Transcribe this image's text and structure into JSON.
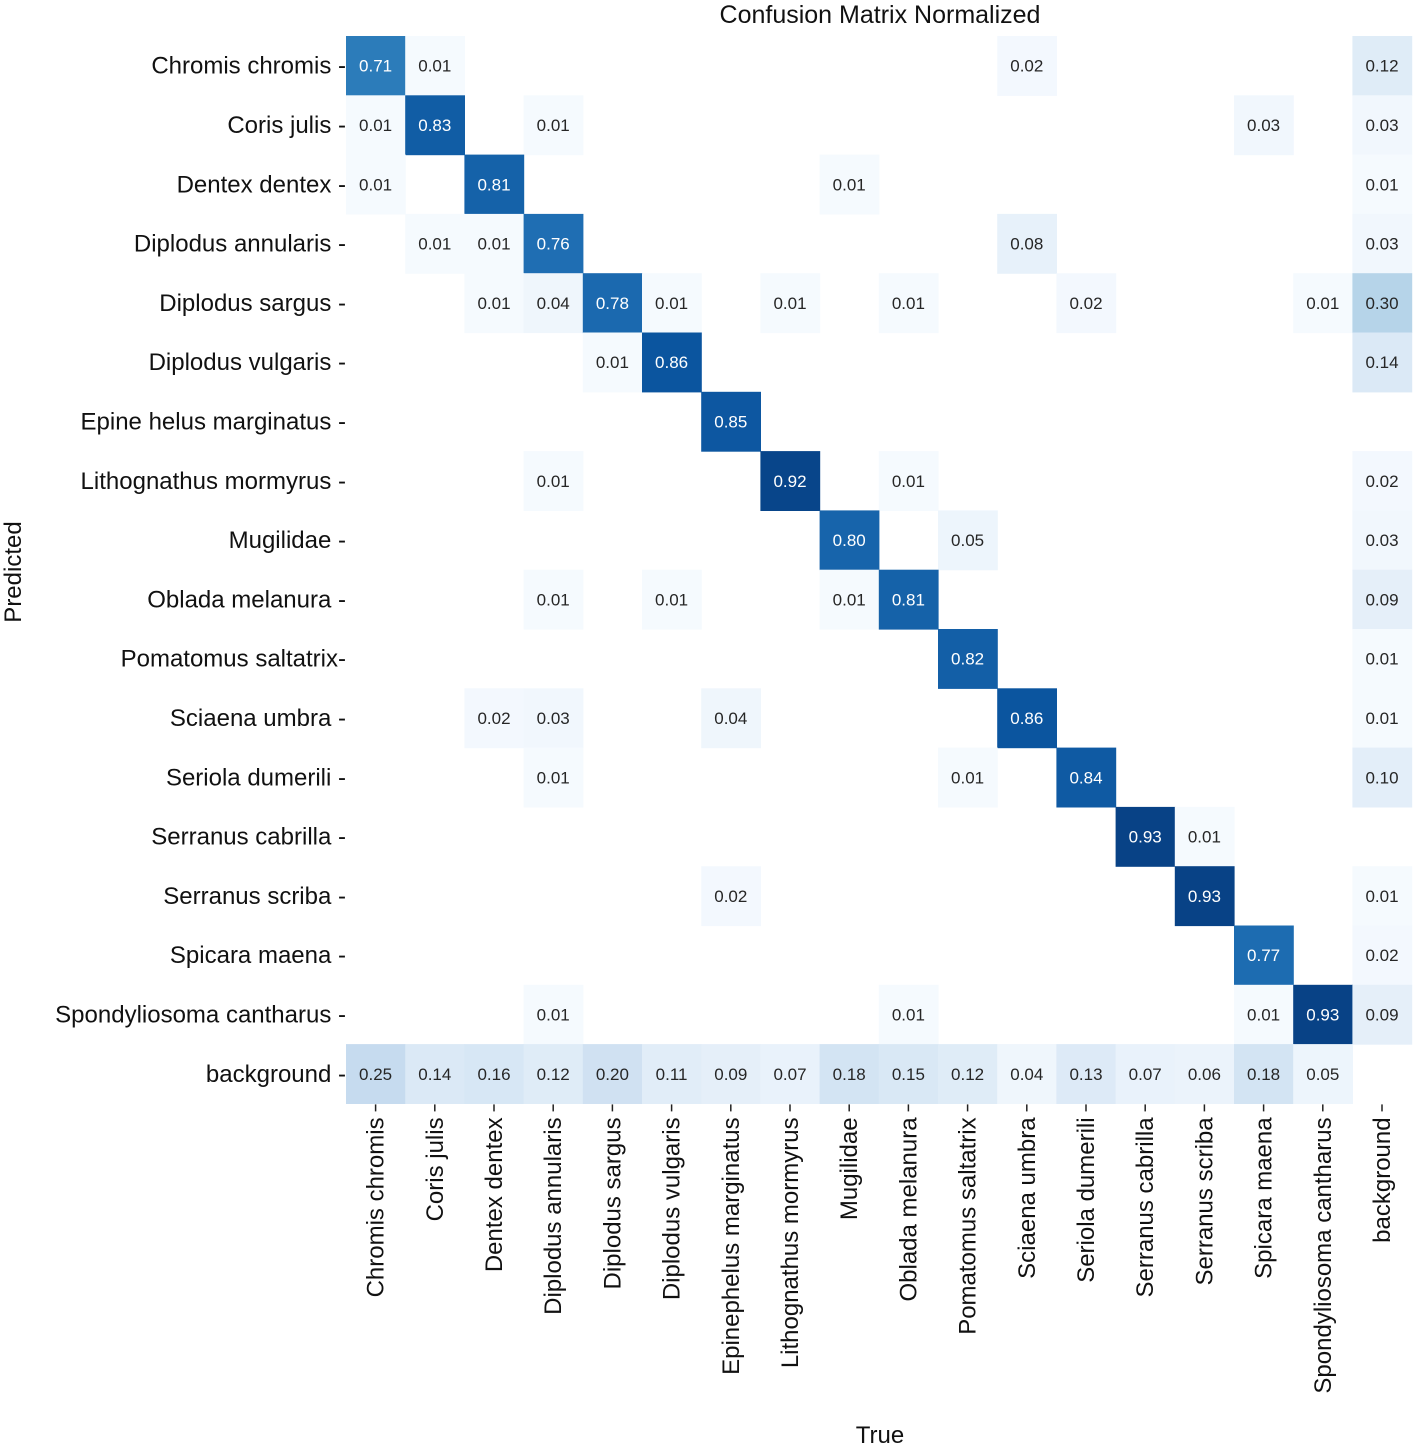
{
  "chart_data": {
    "type": "heatmap",
    "title": "Confusion Matrix Normalized",
    "xlabel": "True",
    "ylabel": "Predicted",
    "colormap": "Blues",
    "value_range": [
      0,
      1
    ],
    "low_color": "#f7fbff",
    "high_color": "#08306b",
    "x_categories": [
      "Chromis chromis",
      "Coris julis",
      "Dentex dentex",
      "Diplodus annularis",
      "Diplodus sargus",
      "Diplodus vulgaris",
      "Epinephelus marginatus",
      "Lithognathus mormyrus",
      "Mugilidae",
      "Oblada melanura",
      "Pomatomus saltatrix",
      "Sciaena umbra",
      "Seriola dumerili",
      "Serranus cabrilla",
      "Serranus scriba",
      "Spicara maena",
      "Spondyliosoma cantharus",
      "background"
    ],
    "y_categories": [
      "Chromis chromis -",
      "Coris julis -",
      "Dentex dentex -",
      "Diplodus annularis -",
      "Diplodus sargus -",
      "Diplodus vulgaris -",
      "Epine  helus marginatus -",
      "Lithognathus mormyrus -",
      "Mugilidae -",
      "Oblada melanura -",
      "Pomatomus saltatrix-",
      "Sciaena umbra -",
      "Seriola dumerili -",
      "Serranus cabrilla -",
      "Serranus scriba -",
      "Spicara maena -",
      "Spondyliosoma cantharus -",
      "background -"
    ],
    "matrix": [
      [
        0.71,
        0.01,
        null,
        null,
        null,
        null,
        null,
        null,
        null,
        null,
        null,
        0.02,
        null,
        null,
        null,
        null,
        null,
        0.12
      ],
      [
        0.01,
        0.83,
        null,
        0.01,
        null,
        null,
        null,
        null,
        null,
        null,
        null,
        null,
        null,
        null,
        null,
        0.03,
        null,
        0.03
      ],
      [
        0.01,
        null,
        0.81,
        null,
        null,
        null,
        null,
        null,
        0.01,
        null,
        null,
        null,
        null,
        null,
        null,
        null,
        null,
        0.01
      ],
      [
        null,
        0.01,
        0.01,
        0.76,
        null,
        null,
        null,
        null,
        null,
        null,
        null,
        0.08,
        null,
        null,
        null,
        null,
        null,
        0.03
      ],
      [
        null,
        null,
        0.01,
        0.04,
        0.78,
        0.01,
        null,
        0.01,
        null,
        0.01,
        null,
        null,
        0.02,
        null,
        null,
        null,
        0.01,
        0.3
      ],
      [
        null,
        null,
        null,
        null,
        0.01,
        0.86,
        null,
        null,
        null,
        null,
        null,
        null,
        null,
        null,
        null,
        null,
        null,
        0.14
      ],
      [
        null,
        null,
        null,
        null,
        null,
        null,
        0.85,
        null,
        null,
        null,
        null,
        null,
        null,
        null,
        null,
        null,
        null,
        null
      ],
      [
        null,
        null,
        null,
        0.01,
        null,
        null,
        null,
        0.92,
        null,
        0.01,
        null,
        null,
        null,
        null,
        null,
        null,
        null,
        0.02
      ],
      [
        null,
        null,
        null,
        null,
        null,
        null,
        null,
        null,
        0.8,
        null,
        0.05,
        null,
        null,
        null,
        null,
        null,
        null,
        0.03
      ],
      [
        null,
        null,
        null,
        0.01,
        null,
        0.01,
        null,
        null,
        0.01,
        0.81,
        null,
        null,
        null,
        null,
        null,
        null,
        null,
        0.09
      ],
      [
        null,
        null,
        null,
        null,
        null,
        null,
        null,
        null,
        null,
        null,
        0.82,
        null,
        null,
        null,
        null,
        null,
        null,
        0.01
      ],
      [
        null,
        null,
        0.02,
        0.03,
        null,
        null,
        0.04,
        null,
        null,
        null,
        null,
        0.86,
        null,
        null,
        null,
        null,
        null,
        0.01
      ],
      [
        null,
        null,
        null,
        0.01,
        null,
        null,
        null,
        null,
        null,
        null,
        0.01,
        null,
        0.84,
        null,
        null,
        null,
        null,
        0.1
      ],
      [
        null,
        null,
        null,
        null,
        null,
        null,
        null,
        null,
        null,
        null,
        null,
        null,
        null,
        0.93,
        0.01,
        null,
        null,
        null
      ],
      [
        null,
        null,
        null,
        null,
        null,
        null,
        0.02,
        null,
        null,
        null,
        null,
        null,
        null,
        null,
        0.93,
        null,
        null,
        0.01
      ],
      [
        null,
        null,
        null,
        null,
        null,
        null,
        null,
        null,
        null,
        null,
        null,
        null,
        null,
        null,
        null,
        0.77,
        null,
        0.02
      ],
      [
        null,
        null,
        null,
        0.01,
        null,
        null,
        null,
        null,
        null,
        0.01,
        null,
        null,
        null,
        null,
        null,
        0.01,
        0.93,
        0.09
      ],
      [
        0.25,
        0.14,
        0.16,
        0.12,
        0.2,
        0.11,
        0.09,
        0.07,
        0.18,
        0.15,
        0.12,
        0.04,
        0.13,
        0.07,
        0.06,
        0.18,
        0.05,
        null
      ]
    ]
  }
}
